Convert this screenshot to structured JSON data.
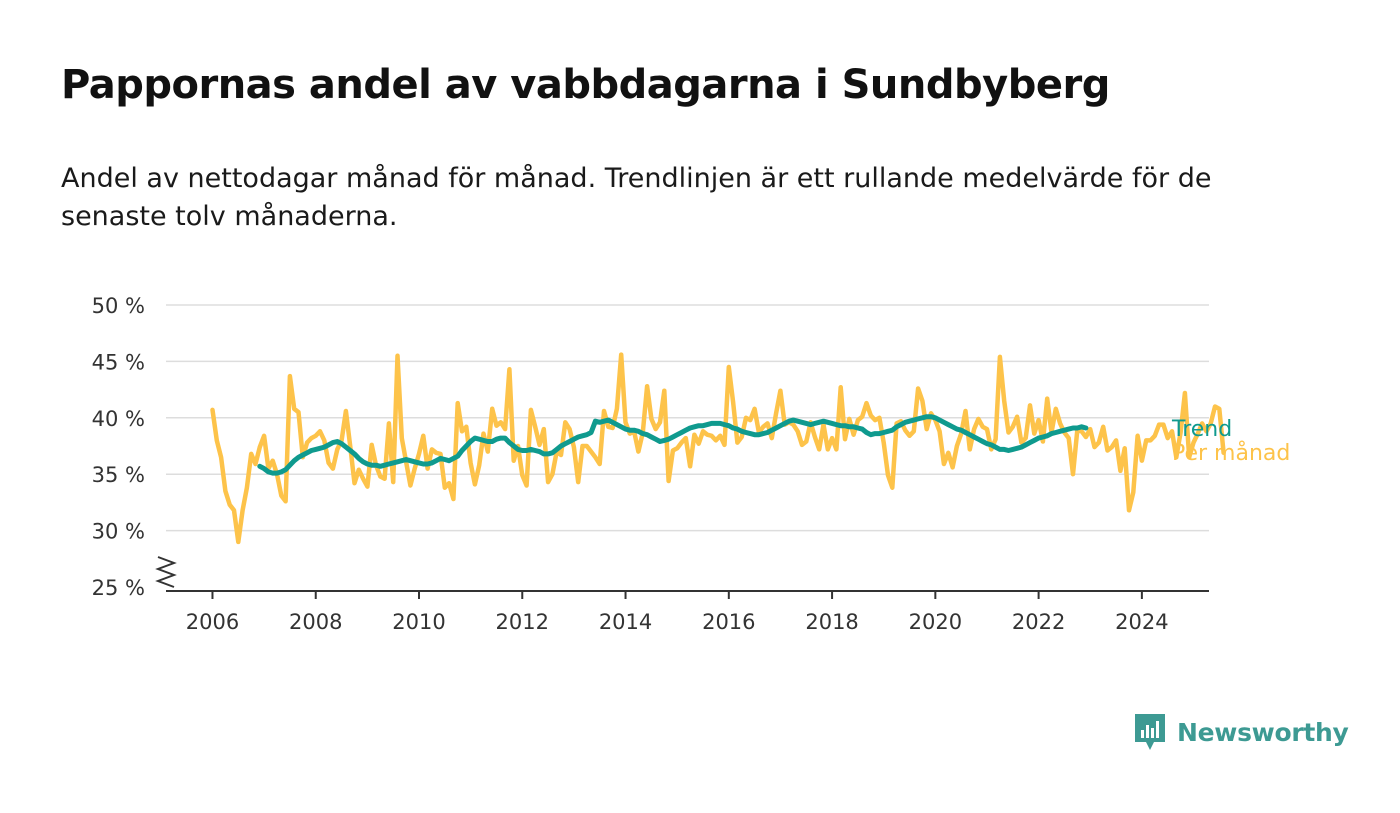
{
  "title": "Pappornas andel av vabbdagarna i Sundbyberg",
  "subtitle": "Andel av nettodagar månad för månad. Trendlinjen är ett rullande medelvärde för de senaste tolv månaderna.",
  "brand": "Newsworthy",
  "colors": {
    "monthly": "#fdc34a",
    "trend": "#0f9a8e",
    "grid": "#dddddd",
    "axis": "#333333",
    "brand": "#3d9a93"
  },
  "chart_data": {
    "type": "line",
    "xlim": [
      2005.1,
      2025.3
    ],
    "ylim": [
      25,
      50
    ],
    "y_ticks": [
      25,
      30,
      35,
      40,
      45,
      50
    ],
    "y_tick_labels": [
      "25 %",
      "30 %",
      "35 %",
      "40 %",
      "45 %",
      "50 %"
    ],
    "x_ticks": [
      2006,
      2008,
      2010,
      2012,
      2014,
      2016,
      2018,
      2020,
      2022,
      2024
    ],
    "x_tick_labels": [
      "2006",
      "2008",
      "2010",
      "2012",
      "2014",
      "2016",
      "2018",
      "2020",
      "2022",
      "2024"
    ],
    "axis_break": true,
    "grid": "horizontal",
    "legend": "inline-right",
    "series": [
      {
        "name": "Per månad",
        "x_start": "2006-01",
        "values": [
          40.7,
          38.0,
          36.5,
          33.5,
          32.3,
          31.8,
          29.0,
          31.8,
          33.8,
          36.8,
          35.9,
          37.4,
          38.4,
          35.5,
          36.2,
          35.0,
          33.1,
          32.6,
          43.7,
          40.8,
          40.5,
          36.5,
          37.8,
          38.2,
          38.4,
          38.8,
          38.0,
          36.0,
          35.5,
          37.2,
          38.0,
          40.6,
          37.5,
          34.2,
          35.4,
          34.6,
          33.9,
          37.6,
          35.8,
          34.8,
          34.6,
          39.5,
          34.3,
          45.5,
          38.2,
          36.1,
          34.0,
          35.5,
          36.8,
          38.4,
          35.5,
          37.2,
          36.9,
          36.8,
          33.8,
          34.2,
          32.8,
          41.3,
          38.8,
          39.2,
          36.0,
          34.1,
          35.8,
          38.6,
          37.0,
          40.8,
          39.3,
          39.6,
          39.0,
          44.3,
          36.2,
          37.5,
          34.9,
          34.0,
          40.7,
          39.2,
          37.6,
          39.0,
          34.3,
          35.0,
          37.0,
          36.7,
          39.6,
          39.0,
          37.4,
          34.3,
          37.5,
          37.5,
          37.0,
          36.5,
          35.9,
          40.6,
          39.2,
          39.1,
          40.8,
          45.6,
          39.6,
          38.6,
          38.8,
          37.0,
          38.7,
          42.8,
          39.9,
          39.0,
          39.6,
          42.4,
          34.4,
          37.1,
          37.3,
          37.8,
          38.2,
          35.7,
          38.5,
          37.7,
          38.8,
          38.5,
          38.4,
          38.0,
          38.4,
          37.6,
          44.5,
          41.4,
          37.8,
          38.3,
          40.0,
          39.8,
          40.8,
          38.7,
          39.2,
          39.5,
          38.2,
          40.4,
          42.4,
          39.4,
          39.6,
          39.4,
          38.8,
          37.6,
          37.9,
          39.6,
          38.3,
          37.2,
          39.4,
          37.2,
          38.2,
          37.2,
          42.7,
          38.1,
          39.9,
          38.5,
          39.8,
          40.1,
          41.3,
          40.2,
          39.8,
          40.0,
          37.8,
          34.9,
          33.8,
          39.5,
          39.7,
          38.9,
          38.4,
          38.8,
          42.6,
          41.5,
          39.0,
          40.4,
          39.8,
          38.8,
          35.9,
          36.9,
          35.6,
          37.5,
          38.6,
          40.6,
          37.2,
          39.0,
          39.9,
          39.2,
          39.0,
          37.2,
          38.1,
          45.4,
          41.5,
          38.7,
          39.2,
          40.1,
          37.8,
          38.2,
          41.1,
          38.6,
          39.8,
          37.9,
          41.7,
          38.7,
          40.8,
          39.5,
          38.7,
          38.2,
          35.0,
          38.9,
          38.8,
          38.3,
          39.0,
          37.4,
          37.8,
          39.2,
          37.1,
          37.4,
          38.0,
          35.3,
          37.3,
          31.8,
          33.4,
          38.4,
          36.2,
          38.0,
          38.0,
          38.4,
          39.4,
          39.4,
          38.2,
          38.8,
          36.5,
          38.7,
          42.2,
          36.5,
          37.8,
          38.6,
          39.5,
          38.8,
          39.5,
          41.0,
          40.8,
          36.9
        ]
      },
      {
        "name": "Trend",
        "x_start": "2006-12",
        "values": [
          35.7,
          35.5,
          35.2,
          35.1,
          35.1,
          35.2,
          35.4,
          35.8,
          36.2,
          36.5,
          36.7,
          36.9,
          37.1,
          37.2,
          37.3,
          37.4,
          37.6,
          37.8,
          37.9,
          37.7,
          37.4,
          37.1,
          36.8,
          36.4,
          36.1,
          35.9,
          35.8,
          35.8,
          35.7,
          35.8,
          35.9,
          36.0,
          36.1,
          36.2,
          36.3,
          36.2,
          36.1,
          36.0,
          35.9,
          35.9,
          36.0,
          36.2,
          36.4,
          36.3,
          36.2,
          36.4,
          36.6,
          37.1,
          37.5,
          37.9,
          38.2,
          38.1,
          38.0,
          37.9,
          37.9,
          38.1,
          38.2,
          38.2,
          37.8,
          37.5,
          37.2,
          37.1,
          37.1,
          37.2,
          37.1,
          37.0,
          36.8,
          36.8,
          36.9,
          37.2,
          37.5,
          37.7,
          37.9,
          38.1,
          38.3,
          38.4,
          38.5,
          38.7,
          39.7,
          39.6,
          39.7,
          39.8,
          39.6,
          39.4,
          39.2,
          39.0,
          38.9,
          38.9,
          38.8,
          38.6,
          38.5,
          38.3,
          38.1,
          37.9,
          38.0,
          38.1,
          38.3,
          38.5,
          38.7,
          38.9,
          39.1,
          39.2,
          39.3,
          39.3,
          39.4,
          39.5,
          39.5,
          39.5,
          39.4,
          39.3,
          39.1,
          39.0,
          38.8,
          38.7,
          38.6,
          38.5,
          38.5,
          38.6,
          38.7,
          38.9,
          39.1,
          39.3,
          39.5,
          39.7,
          39.8,
          39.7,
          39.6,
          39.5,
          39.4,
          39.5,
          39.6,
          39.7,
          39.6,
          39.5,
          39.4,
          39.3,
          39.3,
          39.2,
          39.2,
          39.1,
          39.0,
          38.7,
          38.5,
          38.6,
          38.6,
          38.7,
          38.8,
          38.9,
          39.2,
          39.4,
          39.6,
          39.7,
          39.8,
          39.9,
          40.0,
          40.1,
          40.1,
          40.0,
          39.8,
          39.6,
          39.4,
          39.2,
          39.0,
          38.9,
          38.7,
          38.5,
          38.3,
          38.1,
          37.9,
          37.7,
          37.6,
          37.4,
          37.2,
          37.2,
          37.1,
          37.2,
          37.3,
          37.4,
          37.6,
          37.8,
          38.0,
          38.2,
          38.3,
          38.4,
          38.6,
          38.7,
          38.8,
          38.9,
          39.0,
          39.1,
          39.1,
          39.2,
          39.1
        ]
      }
    ]
  }
}
